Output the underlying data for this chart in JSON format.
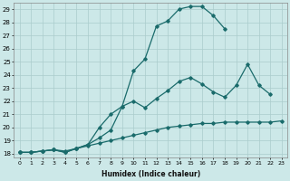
{
  "xlabel": "Humidex (Indice chaleur)",
  "bg_color": "#cce8e8",
  "grid_color": "#aacccc",
  "line_color": "#1a6b6b",
  "xlim": [
    -0.5,
    23.5
  ],
  "ylim": [
    17.7,
    29.5
  ],
  "line1": {
    "x": [
      0,
      1,
      2,
      3,
      4,
      5,
      6,
      7,
      8,
      9,
      10,
      11,
      12,
      13,
      14,
      15,
      16,
      17,
      18,
      19,
      20,
      21,
      22,
      23
    ],
    "y": [
      18.1,
      18.1,
      18.2,
      18.3,
      18.2,
      18.4,
      18.6,
      18.8,
      19.0,
      19.2,
      19.4,
      19.6,
      19.8,
      20.0,
      20.1,
      20.2,
      20.3,
      20.3,
      20.4,
      20.4,
      20.4,
      20.4,
      20.4,
      20.5
    ]
  },
  "line2": {
    "x": [
      0,
      1,
      2,
      3,
      4,
      5,
      6,
      7,
      8,
      9,
      10,
      11,
      12,
      13,
      14,
      15,
      16,
      17,
      18,
      19,
      20,
      21,
      22,
      23
    ],
    "y": [
      18.1,
      18.1,
      18.2,
      18.3,
      18.1,
      18.4,
      18.7,
      19.2,
      19.8,
      21.6,
      22.0,
      21.5,
      22.2,
      22.8,
      23.5,
      23.8,
      23.3,
      22.7,
      22.3,
      23.2,
      24.8,
      23.2,
      22.5,
      null
    ]
  },
  "line3": {
    "x": [
      0,
      1,
      2,
      3,
      4,
      5,
      6,
      7,
      8,
      9,
      10,
      11,
      12,
      13,
      14,
      15,
      16,
      17,
      18
    ],
    "y": [
      18.1,
      18.1,
      18.2,
      18.3,
      18.1,
      18.4,
      18.7,
      20.0,
      21.0,
      21.6,
      24.3,
      25.2,
      27.7,
      28.1,
      29.0,
      29.2,
      29.2,
      28.5,
      27.5
    ]
  },
  "yticks": [
    18,
    19,
    20,
    21,
    22,
    23,
    24,
    25,
    26,
    27,
    28,
    29
  ],
  "xticks": [
    0,
    1,
    2,
    3,
    4,
    5,
    6,
    7,
    8,
    9,
    10,
    11,
    12,
    13,
    14,
    15,
    16,
    17,
    18,
    19,
    20,
    21,
    22,
    23
  ]
}
